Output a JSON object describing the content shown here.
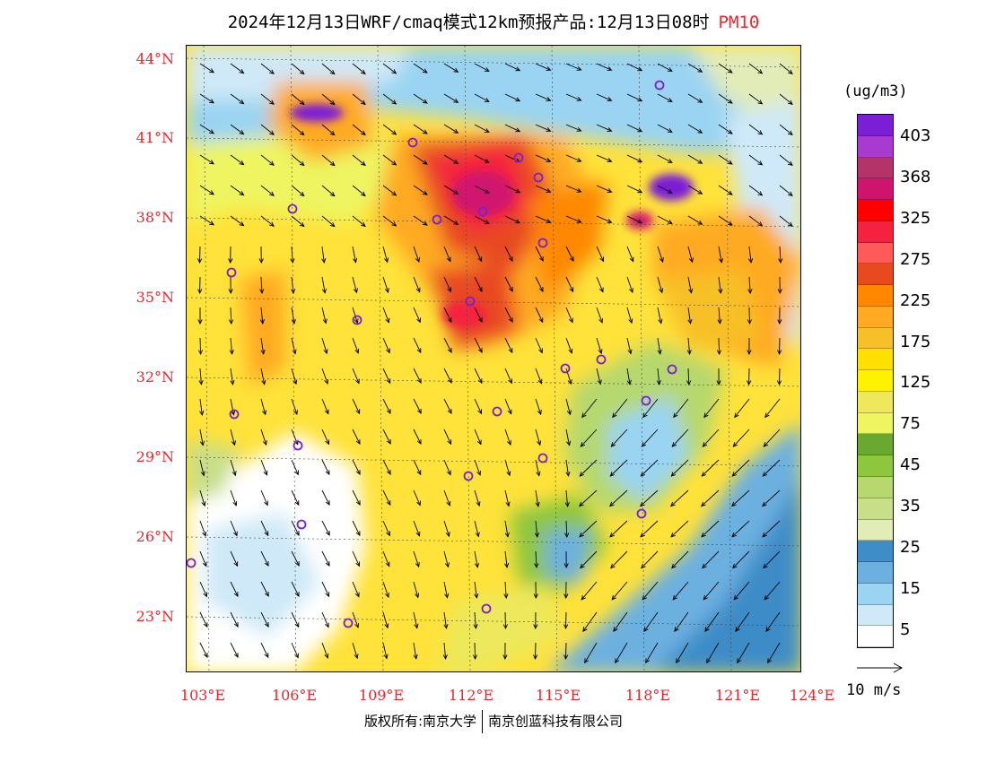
{
  "header": {
    "title": "2024年12月13日WRF/cmaq模式12km预报产品:12月13日08时",
    "variable": "PM10"
  },
  "map": {
    "lat_labels": [
      "44°N",
      "41°N",
      "38°N",
      "35°N",
      "32°N",
      "29°N",
      "26°N",
      "23°N"
    ],
    "lon_labels": [
      "103°E",
      "106°E",
      "109°E",
      "112°E",
      "115°E",
      "118°E",
      "121°E",
      "124°E"
    ]
  },
  "legend": {
    "unit": "(ug/m3)",
    "labels": [
      "403",
      "368",
      "325",
      "275",
      "225",
      "175",
      "125",
      "75",
      "45",
      "35",
      "25",
      "15",
      "5"
    ],
    "colors": [
      "#7b1fd6",
      "#a83ad0",
      "#b4346a",
      "#d0146e",
      "#ff0000",
      "#f5223f",
      "#ff5a5a",
      "#e84a20",
      "#ff8800",
      "#ffaa22",
      "#f7c028",
      "#ffe000",
      "#fff200",
      "#ede85c",
      "#eef560",
      "#6aa832",
      "#8ec63e",
      "#b6d86e",
      "#c8de88",
      "#e2ecb8",
      "#3e8cc8",
      "#6cb0e0",
      "#9ad4f2",
      "#cfe9f8",
      "#ffffff"
    ]
  },
  "wind_reference": {
    "label": "10 m/s"
  },
  "footer": {
    "copyright_left": "版权所有:南京大学",
    "copyright_right": "南京创蓝科技有限公司"
  }
}
